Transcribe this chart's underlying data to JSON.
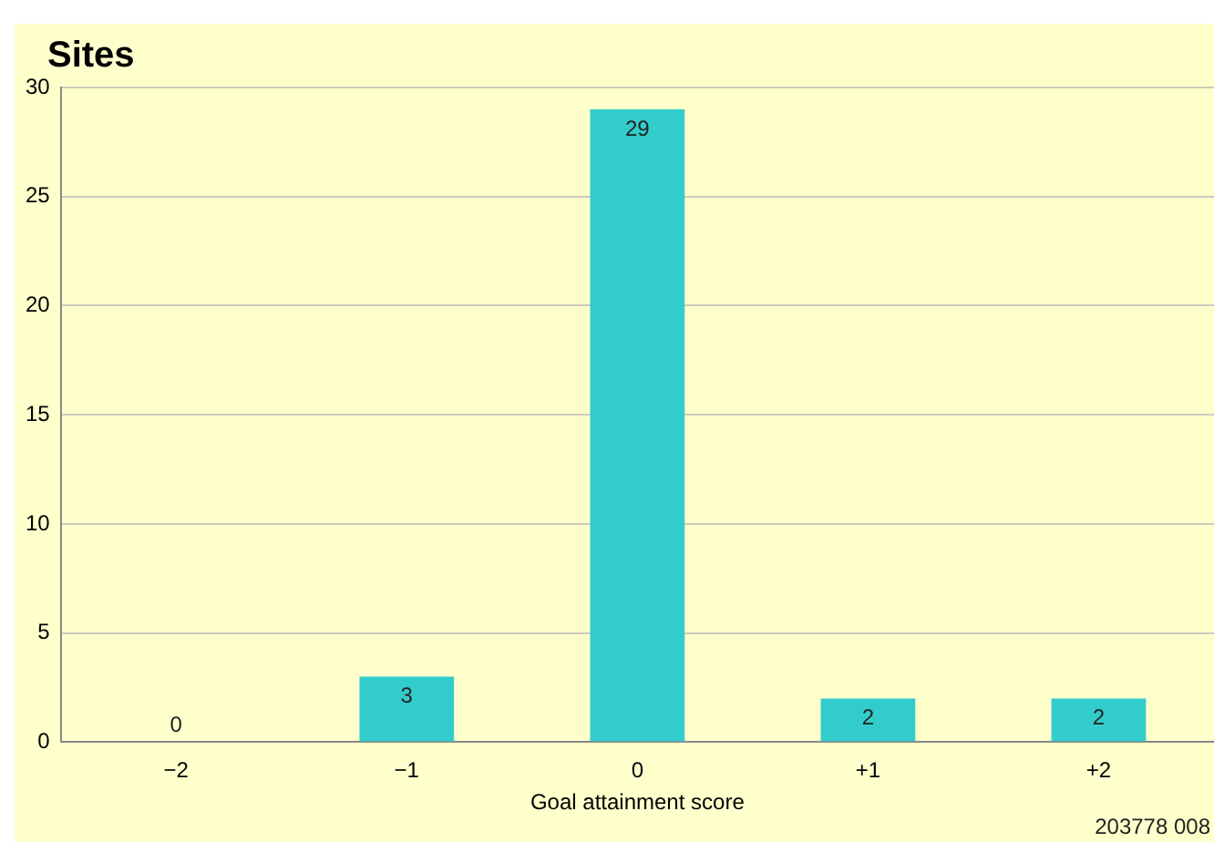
{
  "chart_data": {
    "type": "bar",
    "ylabel": "Sites",
    "xlabel": "Goal attainment score",
    "categories": [
      "−2",
      "−1",
      "0",
      "+1",
      "+2"
    ],
    "values": [
      0,
      3,
      29,
      2,
      2
    ],
    "color": "#33cccc",
    "ylim": [
      0,
      30
    ],
    "yticks": [
      0,
      5,
      10,
      15,
      20,
      25,
      30
    ],
    "grid": "y",
    "data_labels": true,
    "annotations": [
      "203778 008"
    ]
  }
}
